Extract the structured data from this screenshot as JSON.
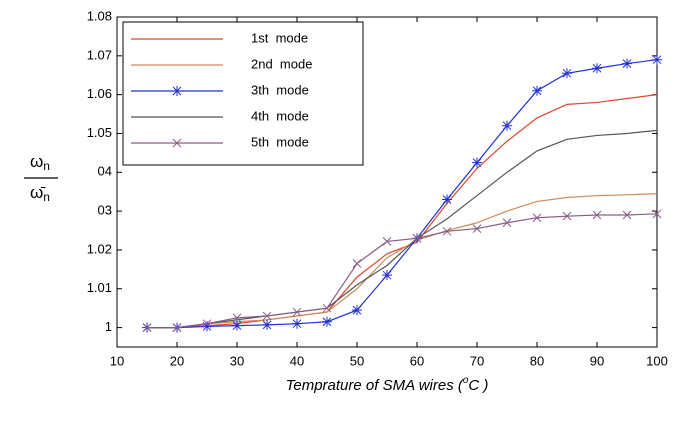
{
  "chart_data": {
    "type": "line",
    "xlabel": {
      "before": "Temprature of SMA wires (",
      "sup": "o",
      "after": "C )"
    },
    "ylabel": {
      "numerator": "ω",
      "numerator_sub": "n",
      "denominator": "ω̄",
      "denominator_sub": "n"
    },
    "x": [
      15,
      20,
      25,
      30,
      35,
      40,
      45,
      50,
      55,
      60,
      65,
      70,
      75,
      80,
      85,
      90,
      95,
      100
    ],
    "series": [
      {
        "name": "1st  mode",
        "color": "#d9482c",
        "marker": "none",
        "values": [
          1,
          1,
          1.0005,
          1.001,
          1.002,
          1.003,
          1.004,
          1.013,
          1.019,
          1.022,
          1.032,
          1.041,
          1.048,
          1.054,
          1.0575,
          1.058,
          1.059,
          1.06
        ]
      },
      {
        "name": "2nd  mode",
        "color": "#cf8a5c",
        "marker": "none",
        "values": [
          1,
          1,
          1.001,
          1.0015,
          1.002,
          1.003,
          1.004,
          1.01,
          1.018,
          1.0225,
          1.025,
          1.027,
          1.03,
          1.0325,
          1.0335,
          1.034,
          1.0342,
          1.0345
        ]
      },
      {
        "name": "3th  mode",
        "color": "#1f30d8",
        "marker": "star",
        "values": [
          1,
          1,
          1.0003,
          1.0005,
          1.0007,
          1.001,
          1.0015,
          1.0045,
          1.0135,
          1.023,
          1.033,
          1.0425,
          1.052,
          1.061,
          1.0655,
          1.0668,
          1.068,
          1.069
        ]
      },
      {
        "name": "4th  mode",
        "color": "#555555",
        "marker": "none",
        "values": [
          1,
          1,
          1.001,
          1.002,
          1.003,
          1.004,
          1.005,
          1.011,
          1.016,
          1.023,
          1.028,
          1.034,
          1.04,
          1.0455,
          1.0485,
          1.0495,
          1.05,
          1.0508
        ]
      },
      {
        "name": "5th  mode",
        "color": "#8a5a86",
        "marker": "x",
        "values": [
          1,
          1,
          1.001,
          1.0025,
          1.003,
          1.004,
          1.005,
          1.0165,
          1.0222,
          1.023,
          1.0248,
          1.0255,
          1.027,
          1.0283,
          1.0287,
          1.029,
          1.029,
          1.0293
        ]
      }
    ],
    "xlim": [
      10,
      100
    ],
    "xticks": [
      10,
      20,
      30,
      40,
      50,
      60,
      70,
      80,
      90,
      100
    ],
    "ylim": [
      0.995,
      1.08
    ],
    "yticks": [
      1,
      1.01,
      1.02,
      {
        "value": 1.03,
        "label": "03"
      },
      {
        "value": 1.04,
        "label": "04"
      },
      1.05,
      1.06,
      1.07,
      1.08
    ],
    "legend": "upper left"
  }
}
